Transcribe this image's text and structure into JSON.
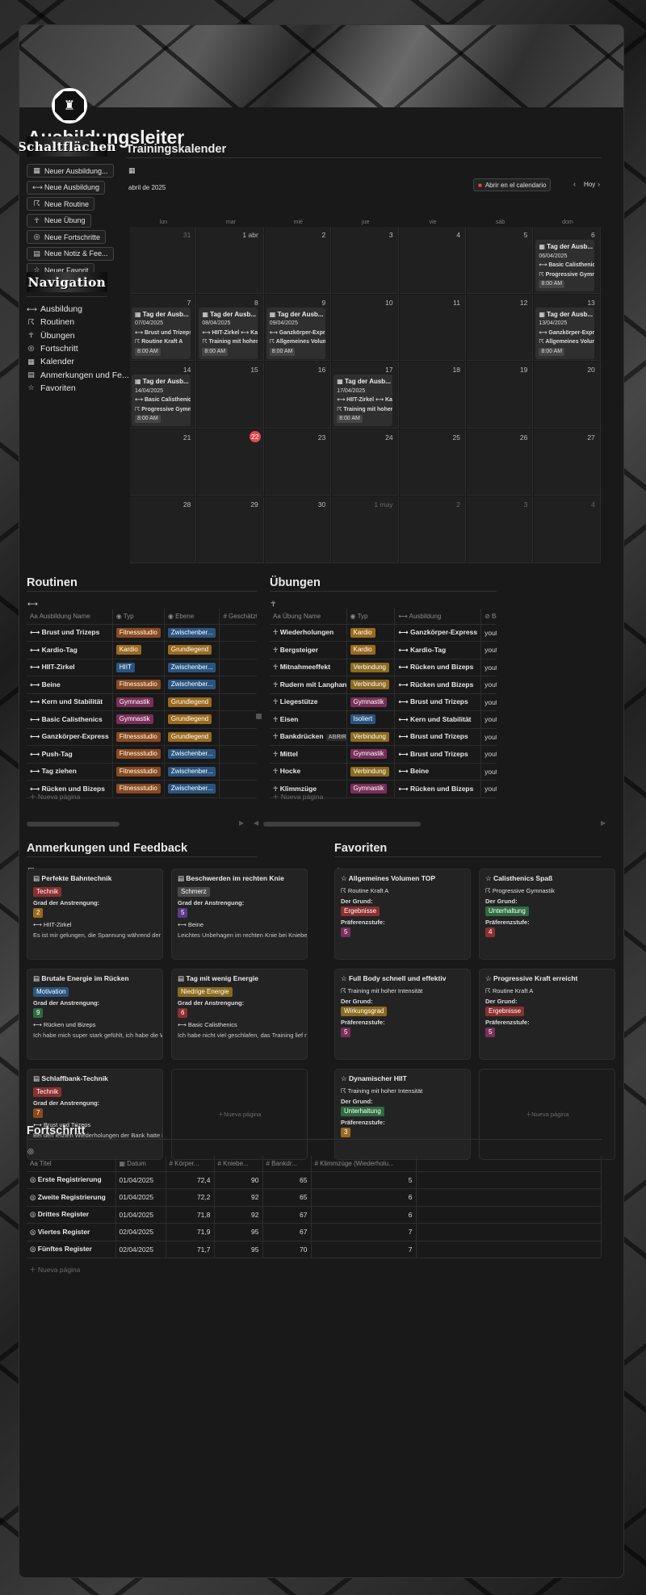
{
  "page": {
    "title": "Ausbildungsleiter"
  },
  "sidebar": {
    "buttons_banner": "Schaltflächen",
    "buttons": [
      {
        "icon": "calendar-icon",
        "glyph": "▦",
        "label": "Neuer Ausbildung..."
      },
      {
        "icon": "dumbbell-icon",
        "glyph": "⟷",
        "label": "Neue Ausbildung"
      },
      {
        "icon": "running-icon",
        "glyph": "☈",
        "label": "Neue Routine"
      },
      {
        "icon": "person-icon",
        "glyph": "☥",
        "label": "Neue Übung"
      },
      {
        "icon": "target-icon",
        "glyph": "◎",
        "label": "Neue Fortschritte"
      },
      {
        "icon": "note-icon",
        "glyph": "▤",
        "label": "Neue Notiz & Fee..."
      },
      {
        "icon": "star-icon",
        "glyph": "☆",
        "label": "Neuer Favorit"
      }
    ],
    "nav_banner": "Navigation",
    "nav": [
      {
        "icon": "dumbbell-icon",
        "glyph": "⟷",
        "label": "Ausbildung"
      },
      {
        "icon": "running-icon",
        "glyph": "☈",
        "label": "Routinen"
      },
      {
        "icon": "person-icon",
        "glyph": "☥",
        "label": "Übungen"
      },
      {
        "icon": "target-icon",
        "glyph": "◎",
        "label": "Fortschritt"
      },
      {
        "icon": "calendar-icon",
        "glyph": "▦",
        "label": "Kalender"
      },
      {
        "icon": "note-icon",
        "glyph": "▤",
        "label": "Anmerkungen und Fe..."
      },
      {
        "icon": "star-icon",
        "glyph": "☆",
        "label": "Favoriten"
      }
    ]
  },
  "calendar": {
    "heading": "Trainingskalender",
    "month": "abril de 2025",
    "open_btn": "Abrir en el calendario",
    "today_btn": "Hoy",
    "weekdays": [
      "lun",
      "mar",
      "mié",
      "jue",
      "vie",
      "sáb",
      "dom"
    ],
    "days": [
      [
        "31",
        "1 abr",
        "2",
        "3",
        "4",
        "5",
        "6"
      ],
      [
        "7",
        "8",
        "9",
        "10",
        "11",
        "12",
        "13"
      ],
      [
        "14",
        "15",
        "16",
        "17",
        "18",
        "19",
        "20"
      ],
      [
        "21",
        "22",
        "23",
        "24",
        "25",
        "26",
        "27"
      ],
      [
        "28",
        "29",
        "30",
        "1 may",
        "2",
        "3",
        "4"
      ]
    ],
    "today": "22",
    "events": [
      {
        "week": 0,
        "day": 6,
        "title": "Tag der Ausb...",
        "date": "06/04/2025",
        "l1": "Basic Calisthenics",
        "l2": "Progressive Gymnastik",
        "time": "8:00 AM"
      },
      {
        "week": 1,
        "day": 0,
        "title": "Tag der Ausb...",
        "date": "07/04/2025",
        "l1": "Brust und Trizeps",
        "l2": "Routine Kraft A",
        "time": "8:00 AM"
      },
      {
        "week": 1,
        "day": 1,
        "title": "Tag der Ausb...",
        "date": "08/04/2025",
        "l1": "HIIT-Zirkel ⟷ Kardio",
        "l2": "Training mit hoher",
        "time": "8:00 AM"
      },
      {
        "week": 1,
        "day": 2,
        "title": "Tag der Ausb...",
        "date": "09/04/2025",
        "l1": "Ganzkörper-Express",
        "l2": "Allgemeines Volumen",
        "time": "8:00 AM"
      },
      {
        "week": 1,
        "day": 6,
        "title": "Tag der Ausb...",
        "date": "13/04/2025",
        "l1": "Ganzkörper-Express",
        "l2": "Allgemeines Volumen",
        "time": "8:00 AM"
      },
      {
        "week": 2,
        "day": 0,
        "title": "Tag der Ausb...",
        "date": "14/04/2025",
        "l1": "Basic Calisthenics",
        "l2": "Progressive Gymnastik",
        "time": "8:00 AM"
      },
      {
        "week": 2,
        "day": 3,
        "title": "Tag der Ausb...",
        "date": "17/04/2025",
        "l1": "HIIT-Zirkel ⟷ Kardio",
        "l2": "Training mit hoher",
        "time": "8:00 AM"
      }
    ]
  },
  "routines": {
    "heading": "Routinen",
    "columns": [
      "Ausbildung Name",
      "Typ",
      "Ebene",
      "Geschätzte Dauer"
    ],
    "rows": [
      [
        "Brust und Trizeps",
        "Fitnessstudio",
        "Zwischenber..."
      ],
      [
        "Kardio-Tag",
        "Kardio",
        "Grundlegend"
      ],
      [
        "HIIT-Zirkel",
        "HIIT",
        "Zwischenber..."
      ],
      [
        "Beine",
        "Fitnessstudio",
        "Zwischenber..."
      ],
      [
        "Kern und Stabilität",
        "Gymnastik",
        "Grundlegend"
      ],
      [
        "Basic Calisthenics",
        "Gymnastik",
        "Grundlegend"
      ],
      [
        "Ganzkörper-Express",
        "Fitnessstudio",
        "Grundlegend"
      ],
      [
        "Push-Tag",
        "Fitnessstudio",
        "Zwischenber..."
      ],
      [
        "Tag ziehen",
        "Fitnessstudio",
        "Zwischenber..."
      ],
      [
        "Rücken und Bizeps",
        "Fitnessstudio",
        "Zwischenber..."
      ]
    ],
    "new_page": "Nueva página"
  },
  "exercises": {
    "heading": "Übungen",
    "columns": [
      "Übung Name",
      "Typ",
      "Ausbildung",
      "Beispiel"
    ],
    "rows": [
      [
        "Wiederholungen",
        "Kardio",
        "Ganzkörper-Express",
        "youtube"
      ],
      [
        "Bergsteiger",
        "Kardio",
        "Kardio-Tag",
        "youtube"
      ],
      [
        "Mitnahmeeffekt",
        "Verbindung",
        "Rücken und Bizeps",
        "youtube"
      ],
      [
        "Rudern mit Langhantel",
        "Verbindung",
        "Rücken und Bizeps",
        "youtube"
      ],
      [
        "Liegestütze",
        "Gymnastik",
        "Brust und Trizeps",
        "youtube"
      ],
      [
        "Eisen",
        "Isoliert",
        "Kern und Stabilität",
        "youtube"
      ],
      [
        "Bankdrücken",
        "Verbindung",
        "Brust und Trizeps",
        "youtube"
      ],
      [
        "Mittel",
        "Gymnastik",
        "Brust und Trizeps",
        "youtube"
      ],
      [
        "Hocke",
        "Verbindung",
        "Beine",
        "youtube"
      ],
      [
        "Klimmzüge",
        "Gymnastik",
        "Rücken und Bizeps",
        "youtube"
      ]
    ],
    "open_label": "ABRIR",
    "new_page": "Nueva página"
  },
  "notes": {
    "heading": "Anmerkungen und Feedback",
    "effort_label": "Grad der Anstrengung:",
    "cards": [
      {
        "title": "Perfekte Bahntechnik",
        "tag": "Technik",
        "tagc": "#8b2f2f",
        "level": "2",
        "levc": "#9a6a1e",
        "routine": "HIIT-Zirkel",
        "text": "Es ist mir gelungen, die Spannung während der ge"
      },
      {
        "title": "Beschwerden im rechten Knie",
        "tag": "Schmerz",
        "tagc": "#4a4a4a",
        "level": "5",
        "levc": "#5a3a8a",
        "routine": "Beine",
        "text": "Leichtes Unbehagen im rechten Knie bei Kniebeu"
      },
      {
        "title": "Brutale Energie im Rücken",
        "tag": "Motivation",
        "tagc": "#2a5580",
        "level": "9",
        "levc": "#2f6b40",
        "routine": "Rücken und Bizeps",
        "text": "Ich habe mich super stark gefühlt, ich habe die W"
      },
      {
        "title": "Tag mit wenig Energie",
        "tag": "Niedrige Energie",
        "tagc": "#8c6a1e",
        "level": "6",
        "levc": "#8b2f2f",
        "routine": "Basic Calisthenics",
        "text": "Ich habe nicht viel geschlafen, das Training lief ni"
      },
      {
        "title": "Schlaffbank-Technik",
        "tag": "Technik",
        "tagc": "#8b2f2f",
        "level": "7",
        "levc": "#8a4a1e",
        "routine": "Brust und Trizeps",
        "text": "Bei den letzten Wiederholungen der Bank hatte i"
      }
    ],
    "new_page": "Nueva página"
  },
  "favorites": {
    "heading": "Favoriten",
    "reason_label": "Der Grund:",
    "pref_label": "Präferenzstufe:",
    "cards": [
      {
        "title": "Allgemeines Volumen TOP",
        "routine": "Routine Kraft A",
        "tag": "Ergebnisse",
        "tagc": "#8b2f2f",
        "level": "5",
        "levc": "#7a2f5a"
      },
      {
        "title": "Calisthenics Spaß",
        "routine": "Progressive Gymnastik",
        "tag": "Unterhaltung",
        "tagc": "#2f6b40",
        "level": "4",
        "levc": "#8b2f2f"
      },
      {
        "title": "Full Body schnell und effektiv",
        "routine": "Training mit hoher Intensität",
        "tag": "Wirkungsgrad",
        "tagc": "#8c6a1e",
        "level": "5",
        "levc": "#7a2f5a"
      },
      {
        "title": "Progressive Kraft erreicht",
        "routine": "Routine Kraft A",
        "tag": "Ergebnisse",
        "tagc": "#8b2f2f",
        "level": "5",
        "levc": "#7a2f5a"
      },
      {
        "title": "Dynamischer HIIT",
        "routine": "Training mit hoher Intensität",
        "tag": "Unterhaltung",
        "tagc": "#2f6b40",
        "level": "3",
        "levc": "#9a6a1e"
      }
    ],
    "new_page": "Nueva página"
  },
  "progress": {
    "heading": "Fortschritt",
    "columns": [
      "Titel",
      "Datum",
      "Körper...",
      "Kniebe...",
      "Bankdr...",
      "Klimmzüge (Wiederholu..."
    ],
    "rows": [
      [
        "Erste Registrierung",
        "01/04/2025",
        "72,4",
        "90",
        "65",
        "5"
      ],
      [
        "Zweite Registrierung",
        "01/04/2025",
        "72,2",
        "92",
        "65",
        "6"
      ],
      [
        "Drittes Register",
        "01/04/2025",
        "71,8",
        "92",
        "67",
        "6"
      ],
      [
        "Viertes Register",
        "02/04/2025",
        "71,9",
        "95",
        "67",
        "7"
      ],
      [
        "Fünftes Register",
        "02/04/2025",
        "71,7",
        "95",
        "70",
        "7"
      ]
    ],
    "new_page": "Nueva página"
  },
  "colors": {
    "Fitnessstudio": "#8a4a1e",
    "Kardio": "#9a6a1e",
    "HIIT": "#2a5580",
    "Gymnastik": "#7a2f5a",
    "Zwischenber...": "#2a5580",
    "Grundlegend": "#9a6a1e",
    "Verbindung": "#8c6a1e",
    "Isoliert": "#2a5580"
  }
}
